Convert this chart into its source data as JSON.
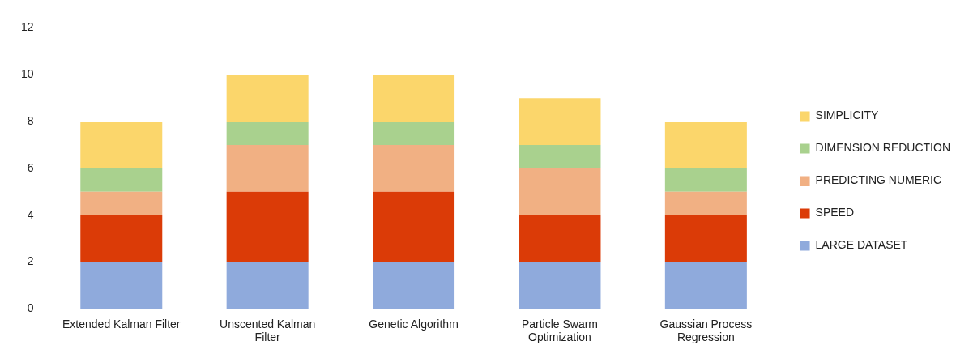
{
  "chart_data": {
    "type": "bar",
    "stacked": true,
    "categories": [
      "Extended Kalman Filter",
      "Unscented Kalman Filter",
      "Genetic Algorithm",
      "Particle Swarm Optimization",
      "Gaussian Process Regression"
    ],
    "series": [
      {
        "name": "LARGE DATASET",
        "color": "#8faadc",
        "values": [
          2,
          2,
          2,
          2,
          2
        ]
      },
      {
        "name": "SPEED",
        "color": "#db3b07",
        "values": [
          2,
          3,
          3,
          2,
          2
        ]
      },
      {
        "name": "PREDICTING NUMERIC",
        "color": "#f1b083",
        "values": [
          1,
          2,
          2,
          2,
          1
        ]
      },
      {
        "name": "DIMENSION REDUCTION",
        "color": "#a9d18e",
        "values": [
          1,
          1,
          1,
          1,
          1
        ]
      },
      {
        "name": "SIMPLICITY",
        "color": "#fbd66b",
        "values": [
          2,
          2,
          2,
          2,
          2
        ]
      }
    ],
    "ylim": [
      0,
      12
    ],
    "yticks": [
      0,
      2,
      4,
      6,
      8,
      10,
      12
    ],
    "grid": "y",
    "legend": "right"
  }
}
